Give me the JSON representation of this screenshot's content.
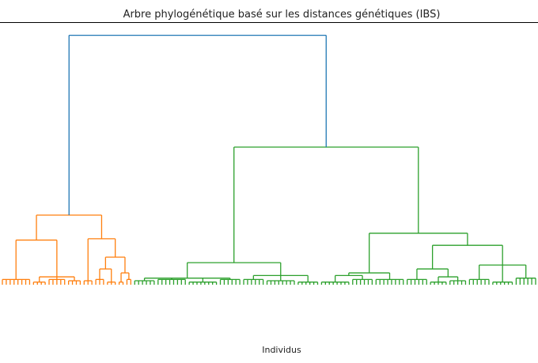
{
  "chart_data": {
    "type": "dendrogram",
    "title": "Arbre phylogénétique basé sur les distances génétiques (IBS)",
    "xlabel": "Individus",
    "ylim": [
      0,
      100
    ],
    "tree": {
      "height": 95,
      "color": "#1f77b4",
      "children": [
        {
          "height": 26.5,
          "color": "#ff7f0e",
          "children": [
            {
              "height": 17,
              "children": [
                {
                  "height": 2,
                  "children": [
                    null,
                    null,
                    null,
                    null,
                    null,
                    null,
                    null,
                    null
                  ]
                },
                {
                  "height": 3,
                  "children": [
                    {
                      "height": 1,
                      "children": [
                        null,
                        null,
                        null,
                        null
                      ]
                    },
                    {
                      "height": 2,
                      "children": [
                        null,
                        null,
                        null,
                        null,
                        null
                      ]
                    },
                    {
                      "height": 1.5,
                      "children": [
                        null,
                        null,
                        null,
                        null
                      ]
                    }
                  ]
                }
              ]
            },
            {
              "height": 17.5,
              "children": [
                {
                  "height": 1.5,
                  "children": [
                    null,
                    null,
                    null
                  ]
                },
                {
                  "height": 10.5,
                  "children": [
                    {
                      "height": 6,
                      "children": [
                        {
                          "height": 2,
                          "children": [
                            null,
                            null,
                            null
                          ]
                        },
                        {
                          "height": 1,
                          "children": [
                            null,
                            null,
                            null
                          ]
                        }
                      ]
                    },
                    {
                      "height": 4.5,
                      "children": [
                        {
                          "height": 1,
                          "children": [
                            null,
                            null
                          ]
                        },
                        {
                          "height": 2,
                          "children": [
                            null,
                            null
                          ]
                        }
                      ]
                    }
                  ]
                }
              ]
            }
          ]
        },
        {
          "height": 52.4,
          "color": "#2ca02c",
          "children": [
            {
              "height": 8.4,
              "children": [
                {
                  "height": 2.5,
                  "children": [
                    {
                      "height": 1.5,
                      "children": [
                        null,
                        null,
                        null,
                        null,
                        null,
                        null
                      ]
                    },
                    {
                      "height": 2,
                      "children": [
                        null,
                        null,
                        null,
                        null,
                        null,
                        null,
                        null,
                        null
                      ]
                    },
                    {
                      "height": 1,
                      "children": [
                        null,
                        null,
                        null,
                        null,
                        null,
                        null,
                        null,
                        null
                      ]
                    },
                    {
                      "height": 2,
                      "children": [
                        null,
                        null,
                        null,
                        null,
                        null,
                        null
                      ]
                    }
                  ]
                },
                {
                  "height": 3.5,
                  "children": [
                    {
                      "height": 2,
                      "children": [
                        null,
                        null,
                        null,
                        null,
                        null,
                        null
                      ]
                    },
                    {
                      "height": 1.5,
                      "children": [
                        null,
                        null,
                        null,
                        null,
                        null,
                        null,
                        null,
                        null
                      ]
                    },
                    {
                      "height": 1,
                      "children": [
                        null,
                        null,
                        null,
                        null,
                        null,
                        null
                      ]
                    }
                  ]
                }
              ]
            },
            {
              "height": 19.6,
              "children": [
                {
                  "height": 4.5,
                  "children": [
                    {
                      "height": 3.5,
                      "children": [
                        {
                          "height": 1,
                          "children": [
                            null,
                            null,
                            null,
                            null,
                            null,
                            null,
                            null,
                            null
                          ]
                        },
                        {
                          "height": 2,
                          "children": [
                            null,
                            null,
                            null,
                            null,
                            null,
                            null
                          ]
                        }
                      ]
                    },
                    {
                      "height": 2,
                      "children": [
                        null,
                        null,
                        null,
                        null,
                        null,
                        null,
                        null,
                        null
                      ]
                    }
                  ]
                },
                {
                  "height": 15,
                  "children": [
                    {
                      "height": 6,
                      "children": [
                        {
                          "height": 2,
                          "children": [
                            null,
                            null,
                            null,
                            null,
                            null,
                            null
                          ]
                        },
                        {
                          "height": 3,
                          "children": [
                            {
                              "height": 1,
                              "children": [
                                null,
                                null,
                                null,
                                null,
                                null
                              ]
                            },
                            {
                              "height": 1.5,
                              "children": [
                                null,
                                null,
                                null,
                                null,
                                null
                              ]
                            }
                          ]
                        }
                      ]
                    },
                    {
                      "height": 7.5,
                      "children": [
                        {
                          "height": 2,
                          "children": [
                            null,
                            null,
                            null,
                            null,
                            null,
                            null
                          ]
                        },
                        {
                          "height": 1,
                          "children": [
                            null,
                            null,
                            null,
                            null,
                            null,
                            null
                          ]
                        },
                        {
                          "height": 2.5,
                          "children": [
                            null,
                            null,
                            null,
                            null,
                            null,
                            null
                          ]
                        }
                      ]
                    }
                  ]
                }
              ]
            }
          ]
        }
      ]
    }
  }
}
